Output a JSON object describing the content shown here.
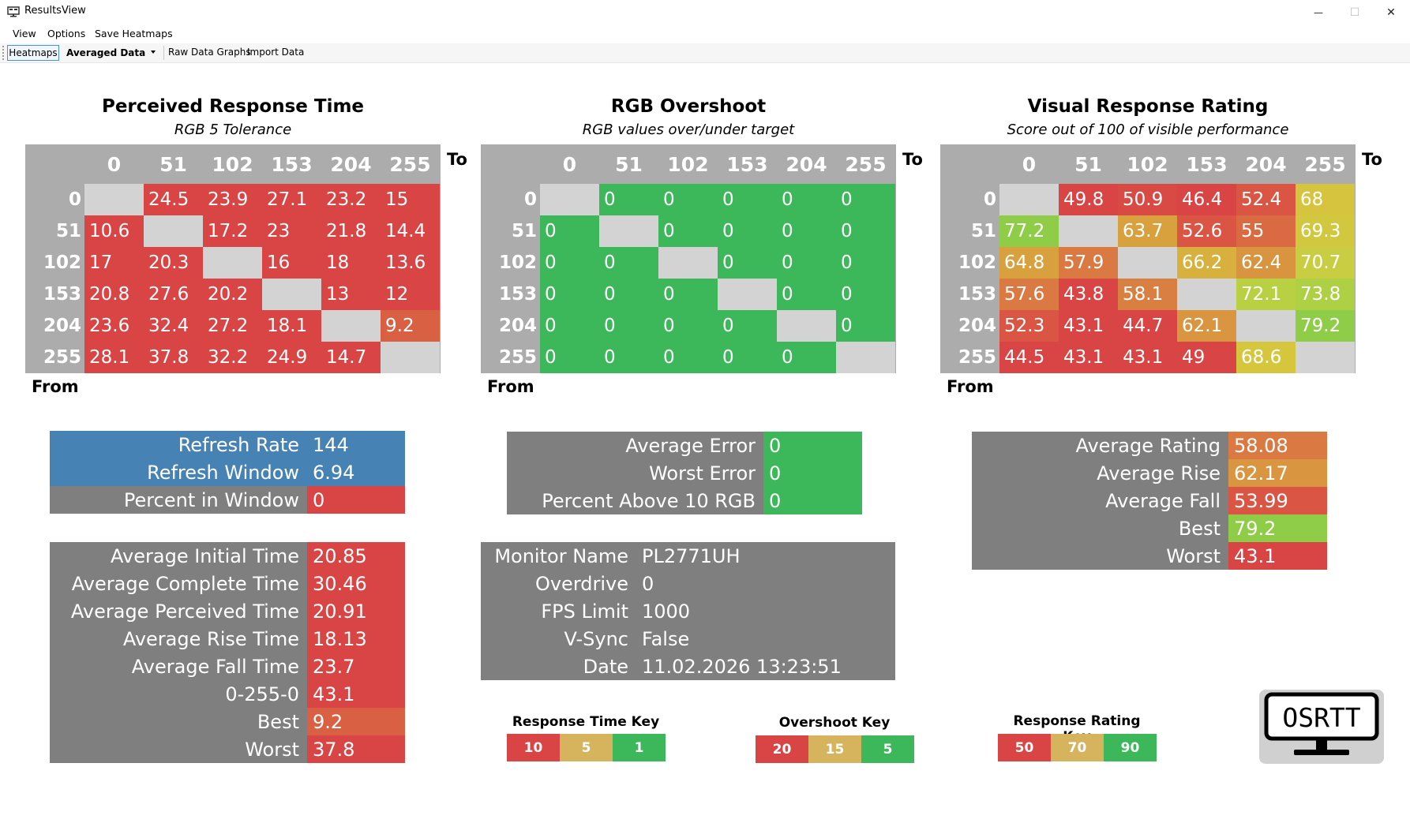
{
  "window": {
    "title": "ResultsView",
    "minimize_glyph": "—",
    "maximize_glyph": "☐",
    "close_glyph": "✕"
  },
  "menu": [
    "View",
    "Options",
    "Save Heatmaps"
  ],
  "toolbar": {
    "heatmaps_label": "Heatmaps",
    "view_select_value": "Averaged Data",
    "raw_graphs_label": "Raw Data Graphs",
    "import_label": "Import Data"
  },
  "heatmaps": [
    {
      "title": "Perceived Response Time",
      "subtitle": "RGB 5 Tolerance",
      "to_label": "To",
      "from_label": "From",
      "columns": [
        "0",
        "51",
        "102",
        "153",
        "204",
        "255"
      ],
      "rows": [
        "0",
        "51",
        "102",
        "153",
        "204",
        "255"
      ],
      "cells": [
        [
          "",
          "24.5",
          "23.9",
          "27.1",
          "23.2",
          "15"
        ],
        [
          "10.6",
          "",
          "17.2",
          "23",
          "21.8",
          "14.4"
        ],
        [
          "17",
          "20.3",
          "",
          "16",
          "18",
          "13.6"
        ],
        [
          "20.8",
          "27.6",
          "20.2",
          "",
          "13",
          "12"
        ],
        [
          "23.6",
          "32.4",
          "27.2",
          "18.1",
          "",
          "9.2"
        ],
        [
          "28.1",
          "37.8",
          "32.2",
          "24.9",
          "14.7",
          ""
        ]
      ],
      "colors": [
        [
          "#d3d3d3",
          "#d94545",
          "#d94545",
          "#d94545",
          "#d94545",
          "#d94545"
        ],
        [
          "#d94545",
          "#d3d3d3",
          "#d94545",
          "#d94545",
          "#d94545",
          "#d94545"
        ],
        [
          "#d94545",
          "#d94545",
          "#d3d3d3",
          "#d94545",
          "#d94545",
          "#d94545"
        ],
        [
          "#d94545",
          "#d94545",
          "#d94545",
          "#d3d3d3",
          "#d94545",
          "#d94545"
        ],
        [
          "#d94545",
          "#d94545",
          "#d94545",
          "#d94545",
          "#d3d3d3",
          "#da6043"
        ],
        [
          "#d94545",
          "#d94545",
          "#d94545",
          "#d94545",
          "#d94545",
          "#d3d3d3"
        ]
      ]
    },
    {
      "title": "RGB Overshoot",
      "subtitle": "RGB values over/under target",
      "to_label": "To",
      "from_label": "From",
      "columns": [
        "0",
        "51",
        "102",
        "153",
        "204",
        "255"
      ],
      "rows": [
        "0",
        "51",
        "102",
        "153",
        "204",
        "255"
      ],
      "cells": [
        [
          "",
          "0",
          "0",
          "0",
          "0",
          "0"
        ],
        [
          "0",
          "",
          "0",
          "0",
          "0",
          "0"
        ],
        [
          "0",
          "0",
          "",
          "0",
          "0",
          "0"
        ],
        [
          "0",
          "0",
          "0",
          "",
          "0",
          "0"
        ],
        [
          "0",
          "0",
          "0",
          "0",
          "",
          "0"
        ],
        [
          "0",
          "0",
          "0",
          "0",
          "0",
          ""
        ]
      ],
      "colors": [
        [
          "#d3d3d3",
          "#3cb85b",
          "#3cb85b",
          "#3cb85b",
          "#3cb85b",
          "#3cb85b"
        ],
        [
          "#3cb85b",
          "#d3d3d3",
          "#3cb85b",
          "#3cb85b",
          "#3cb85b",
          "#3cb85b"
        ],
        [
          "#3cb85b",
          "#3cb85b",
          "#d3d3d3",
          "#3cb85b",
          "#3cb85b",
          "#3cb85b"
        ],
        [
          "#3cb85b",
          "#3cb85b",
          "#3cb85b",
          "#d3d3d3",
          "#3cb85b",
          "#3cb85b"
        ],
        [
          "#3cb85b",
          "#3cb85b",
          "#3cb85b",
          "#3cb85b",
          "#d3d3d3",
          "#3cb85b"
        ],
        [
          "#3cb85b",
          "#3cb85b",
          "#3cb85b",
          "#3cb85b",
          "#3cb85b",
          "#d3d3d3"
        ]
      ]
    },
    {
      "title": "Visual Response Rating",
      "subtitle": "Score out of 100 of visible performance",
      "to_label": "To",
      "from_label": "From",
      "columns": [
        "0",
        "51",
        "102",
        "153",
        "204",
        "255"
      ],
      "rows": [
        "0",
        "51",
        "102",
        "153",
        "204",
        "255"
      ],
      "cells": [
        [
          "",
          "49.8",
          "50.9",
          "46.4",
          "52.4",
          "68"
        ],
        [
          "77.2",
          "",
          "63.7",
          "52.6",
          "55",
          "69.3"
        ],
        [
          "64.8",
          "57.9",
          "",
          "66.2",
          "62.4",
          "70.7"
        ],
        [
          "57.6",
          "43.8",
          "58.1",
          "",
          "72.1",
          "73.8"
        ],
        [
          "52.3",
          "43.1",
          "44.7",
          "62.1",
          "",
          "79.2"
        ],
        [
          "44.5",
          "43.1",
          "43.1",
          "49",
          "68.6",
          ""
        ]
      ],
      "colors": [
        [
          "#d3d3d3",
          "#d94545",
          "#d94a44",
          "#d94545",
          "#da5543",
          "#d6c33e"
        ],
        [
          "#8fcc47",
          "#d3d3d3",
          "#d9a13e",
          "#da5543",
          "#da6a42",
          "#d2c840"
        ],
        [
          "#d9a13e",
          "#da7a42",
          "#d3d3d3",
          "#d7b03e",
          "#d9943f",
          "#c8cd41"
        ],
        [
          "#da7a42",
          "#d94545",
          "#da7f42",
          "#d3d3d3",
          "#b9d043",
          "#add044"
        ],
        [
          "#da5543",
          "#d94545",
          "#d94545",
          "#d9953f",
          "#d3d3d3",
          "#8fcc47"
        ],
        [
          "#d94545",
          "#d94545",
          "#d94545",
          "#d94545",
          "#d6c63e",
          "#d3d3d3"
        ]
      ]
    }
  ],
  "refresh_stats": {
    "rows": [
      {
        "label": "Refresh Rate",
        "value": "144",
        "label_color": "#4682b4",
        "value_color": "#4682b4"
      },
      {
        "label": "Refresh Window",
        "value": "6.94",
        "label_color": "#4682b4",
        "value_color": "#4682b4"
      },
      {
        "label": "Percent in Window",
        "value": "0",
        "label_color": "#7f7f7f",
        "value_color": "#d94545"
      }
    ]
  },
  "time_stats": {
    "rows": [
      {
        "label": "Average Initial Time",
        "value": "20.85",
        "value_color": "#d94545"
      },
      {
        "label": "Average Complete Time",
        "value": "30.46",
        "value_color": "#d94545"
      },
      {
        "label": "Average Perceived Time",
        "value": "20.91",
        "value_color": "#d94545"
      },
      {
        "label": "Average Rise Time",
        "value": "18.13",
        "value_color": "#d94545"
      },
      {
        "label": "Average Fall Time",
        "value": "23.7",
        "value_color": "#d94545"
      },
      {
        "label": "0-255-0",
        "value": "43.1",
        "value_color": "#d94545"
      },
      {
        "label": "Best",
        "value": "9.2",
        "value_color": "#da6043"
      },
      {
        "label": "Worst",
        "value": "37.8",
        "value_color": "#d94545"
      }
    ]
  },
  "error_stats": {
    "rows": [
      {
        "label": "Average Error",
        "value": "0",
        "value_color": "#3cb85b"
      },
      {
        "label": "Worst Error",
        "value": "0",
        "value_color": "#3cb85b"
      },
      {
        "label": "Percent Above 10 RGB",
        "value": "0",
        "value_color": "#3cb85b"
      }
    ]
  },
  "monitor_info": {
    "rows": [
      {
        "label": "Monitor Name",
        "value": "PL2771UH"
      },
      {
        "label": "Overdrive",
        "value": "0"
      },
      {
        "label": "FPS Limit",
        "value": "1000"
      },
      {
        "label": "V-Sync",
        "value": "False"
      },
      {
        "label": "Date",
        "value": "11.02.2026 13:23:51"
      }
    ]
  },
  "rating_stats": {
    "rows": [
      {
        "label": "Average Rating",
        "value": "58.08",
        "value_color": "#da7a42"
      },
      {
        "label": "Average Rise",
        "value": "62.17",
        "value_color": "#d9953f"
      },
      {
        "label": "Average Fall",
        "value": "53.99",
        "value_color": "#da5543"
      },
      {
        "label": "Best",
        "value": "79.2",
        "value_color": "#8fcc47"
      },
      {
        "label": "Worst",
        "value": "43.1",
        "value_color": "#d94545"
      }
    ]
  },
  "keys": [
    {
      "title": "Response Time Key",
      "values": [
        "10",
        "5",
        "1"
      ],
      "colors": [
        "#d94545",
        "#d6b45d",
        "#3cb85b"
      ]
    },
    {
      "title": "Overshoot Key",
      "values": [
        "20",
        "15",
        "5"
      ],
      "colors": [
        "#d94545",
        "#d6b45d",
        "#3cb85b"
      ]
    },
    {
      "title": "Response Rating Key",
      "values": [
        "50",
        "70",
        "90"
      ],
      "colors": [
        "#d94545",
        "#d6b45d",
        "#3cb85b"
      ]
    }
  ],
  "logo": {
    "text": "OSRTT"
  }
}
